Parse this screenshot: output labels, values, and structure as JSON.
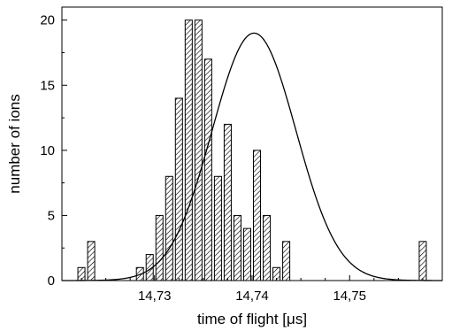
{
  "chart_data": {
    "type": "bar",
    "title": "",
    "xlabel": "time of flight [μs]",
    "ylabel": "number of ions",
    "bin_width": 0.001,
    "x": [
      14.7225,
      14.7235,
      14.7285,
      14.7295,
      14.7305,
      14.7315,
      14.7325,
      14.7335,
      14.7345,
      14.7355,
      14.7365,
      14.7375,
      14.7385,
      14.7395,
      14.7405,
      14.7415,
      14.7425,
      14.7435,
      14.7575
    ],
    "values": [
      1,
      3,
      1,
      2,
      5,
      8,
      14,
      20,
      20,
      17,
      8,
      12,
      5,
      4,
      10,
      5,
      1,
      3,
      3
    ],
    "fit_curve": {
      "type": "gaussian",
      "center": 14.7402,
      "amplitude": 19,
      "sigma": 0.0043,
      "offset": 0
    },
    "xlim": [
      14.7205,
      14.7595
    ],
    "ylim": [
      0,
      21
    ],
    "x_ticks": [
      14.73,
      14.74,
      14.75
    ],
    "x_tick_labels": [
      "14,73",
      "14,74",
      "14,75"
    ],
    "y_ticks": [
      0,
      5,
      10,
      15,
      20
    ],
    "y_tick_labels": [
      "0",
      "5",
      "10",
      "15",
      "20"
    ],
    "grid": false,
    "legend": "none"
  }
}
